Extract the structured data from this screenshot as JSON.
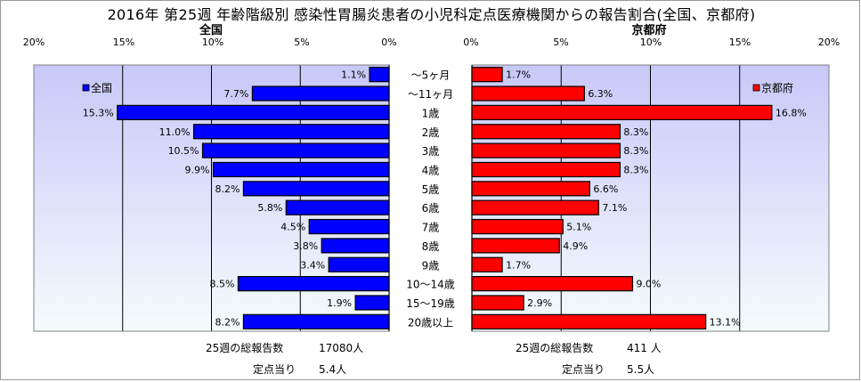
{
  "title": "2016年 第25週 年齢階級別 感染性胃腸炎患者の小児科定点医療機関からの報告割合(全国、京都府)",
  "panels": {
    "left": {
      "title": "全国",
      "legend": "全国",
      "color": "#0000ff",
      "summary_total_label": "25週の総報告数",
      "summary_total_value": "17080人",
      "summary_per_label": "定点当り",
      "summary_per_value": "5.4人"
    },
    "right": {
      "title": "京都府",
      "legend": "京都府",
      "color": "#ff0000",
      "summary_total_label": "25週の総報告数",
      "summary_total_value": "411 人",
      "summary_per_label": "定点当り",
      "summary_per_value": "5.5人"
    }
  },
  "axis": {
    "ticks_left": [
      "20%",
      "15%",
      "10%",
      "5%",
      "0%"
    ],
    "ticks_right": [
      "0%",
      "5%",
      "10%",
      "15%",
      "20%"
    ]
  },
  "chart_data": [
    {
      "type": "bar",
      "orientation": "horizontal-reversed",
      "title": "全国",
      "categories": [
        "～5ヶ月",
        "～11ヶ月",
        "1歳",
        "2歳",
        "3歳",
        "4歳",
        "5歳",
        "6歳",
        "7歳",
        "8歳",
        "9歳",
        "10～14歳",
        "15～19歳",
        "20歳以上"
      ],
      "series": [
        {
          "name": "全国",
          "values": [
            1.1,
            7.7,
            15.3,
            11.0,
            10.5,
            9.9,
            8.2,
            5.8,
            4.5,
            3.8,
            3.4,
            8.5,
            1.9,
            8.2
          ],
          "labels": [
            "1.1%",
            "7.7%",
            "15.3%",
            "11.0%",
            "10.5%",
            "9.9%",
            "8.2%",
            "5.8%",
            "4.5%",
            "3.8%",
            "3.4%",
            "8.5%",
            "1.9%",
            "8.2%"
          ]
        }
      ],
      "xlim": [
        0,
        20
      ],
      "legend_position": "top-left",
      "grid": true
    },
    {
      "type": "bar",
      "orientation": "horizontal",
      "title": "京都府",
      "categories": [
        "～5ヶ月",
        "～11ヶ月",
        "1歳",
        "2歳",
        "3歳",
        "4歳",
        "5歳",
        "6歳",
        "7歳",
        "8歳",
        "9歳",
        "10～14歳",
        "15～19歳",
        "20歳以上"
      ],
      "series": [
        {
          "name": "京都府",
          "values": [
            1.7,
            6.3,
            16.8,
            8.3,
            8.3,
            8.3,
            6.6,
            7.1,
            5.1,
            4.9,
            1.7,
            9.0,
            2.9,
            13.1
          ],
          "labels": [
            "1.7%",
            "6.3%",
            "16.8%",
            "8.3%",
            "8.3%",
            "8.3%",
            "6.6%",
            "7.1%",
            "5.1%",
            "4.9%",
            "1.7%",
            "9.0%",
            "2.9%",
            "13.1%"
          ]
        }
      ],
      "xlim": [
        0,
        20
      ],
      "legend_position": "top-right",
      "grid": true
    }
  ]
}
